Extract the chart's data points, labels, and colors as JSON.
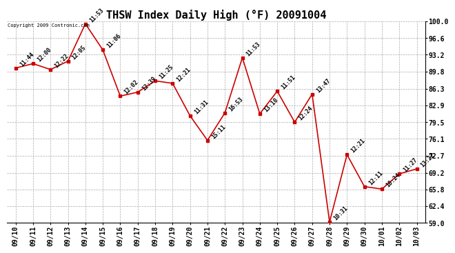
{
  "title": "THSW Index Daily High (°F) 20091004",
  "copyright": "Copyright 2009 Contronic.com",
  "dates": [
    "09/10",
    "09/11",
    "09/12",
    "09/13",
    "09/14",
    "09/15",
    "09/16",
    "09/17",
    "09/18",
    "09/19",
    "09/20",
    "09/21",
    "09/22",
    "09/23",
    "09/24",
    "09/25",
    "09/26",
    "09/27",
    "09/28",
    "09/29",
    "09/30",
    "10/01",
    "10/02",
    "10/03"
  ],
  "values": [
    90.5,
    91.4,
    90.2,
    91.9,
    99.5,
    94.2,
    84.8,
    85.6,
    87.9,
    87.4,
    80.8,
    75.8,
    81.4,
    92.6,
    81.2,
    85.8,
    79.5,
    85.2,
    59.2,
    72.9,
    66.4,
    65.9,
    69.0,
    70.0
  ],
  "times": [
    "11:44",
    "12:00",
    "12:22",
    "12:05",
    "11:53",
    "11:06",
    "12:02",
    "12:39",
    "11:25",
    "12:21",
    "11:31",
    "15:11",
    "16:53",
    "11:53",
    "13:10",
    "11:51",
    "12:24",
    "13:47",
    "10:31",
    "12:21",
    "12:11",
    "10:24",
    "11:27",
    "13:22"
  ],
  "ylim": [
    59.0,
    100.0
  ],
  "yticks": [
    59.0,
    62.4,
    65.8,
    69.2,
    72.7,
    76.1,
    79.5,
    82.9,
    86.3,
    89.8,
    93.2,
    96.6,
    100.0
  ],
  "line_color": "#cc0000",
  "marker_color": "#cc0000",
  "bg_color": "#ffffff",
  "grid_color": "#aaaaaa",
  "title_fontsize": 11,
  "label_fontsize": 7,
  "annotation_fontsize": 6,
  "copyright_fontsize": 5
}
